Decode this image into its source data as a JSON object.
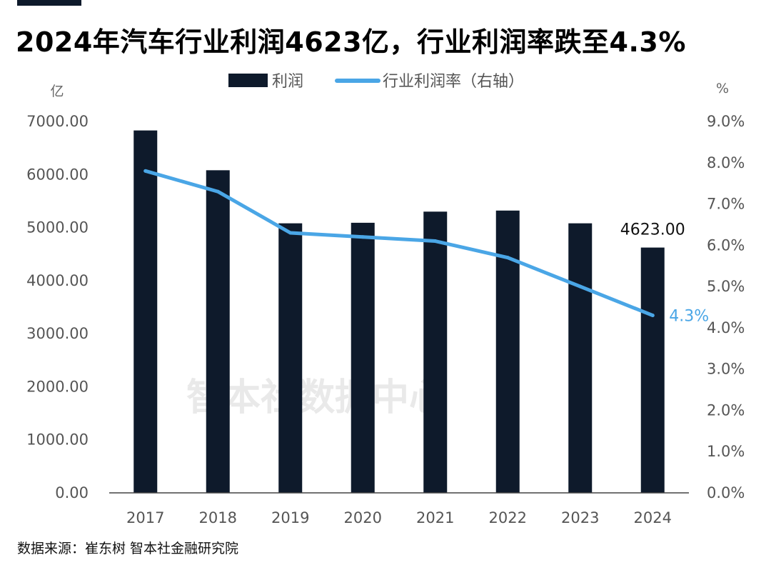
{
  "title": "2024年汽车行业利润4623亿，行业利润率跌至4.3%",
  "source": "数据来源：崔东树 智本社金融研究院",
  "watermark": "智本社数据中心",
  "colors": {
    "bar": "#0e1a2b",
    "line": "#4aa6e6",
    "axis": "#555555"
  },
  "chart_data": {
    "type": "bar+line",
    "categories": [
      "2017",
      "2018",
      "2019",
      "2020",
      "2021",
      "2022",
      "2023",
      "2024"
    ],
    "series": [
      {
        "name": "利润",
        "type": "bar",
        "axis": "left",
        "values": [
          6830,
          6080,
          5080,
          5090,
          5300,
          5320,
          5080,
          4623
        ]
      },
      {
        "name": "行业利润率（右轴）",
        "type": "line",
        "axis": "right",
        "values": [
          7.8,
          7.3,
          6.3,
          6.2,
          6.1,
          5.7,
          5.0,
          4.3
        ]
      }
    ],
    "left_axis": {
      "unit": "亿",
      "ylim": [
        0,
        7000
      ],
      "ticks": [
        "0.00",
        "1000.00",
        "2000.00",
        "3000.00",
        "4000.00",
        "5000.00",
        "6000.00",
        "7000.00"
      ]
    },
    "right_axis": {
      "unit": "%",
      "ylim": [
        0,
        9
      ],
      "ticks": [
        "0.0%",
        "1.0%",
        "2.0%",
        "3.0%",
        "4.0%",
        "5.0%",
        "6.0%",
        "7.0%",
        "8.0%",
        "9.0%"
      ]
    },
    "annotations": {
      "bar_last": "4623.00",
      "line_last": "4.3%"
    },
    "legend_position": "top-center",
    "grid": false
  }
}
